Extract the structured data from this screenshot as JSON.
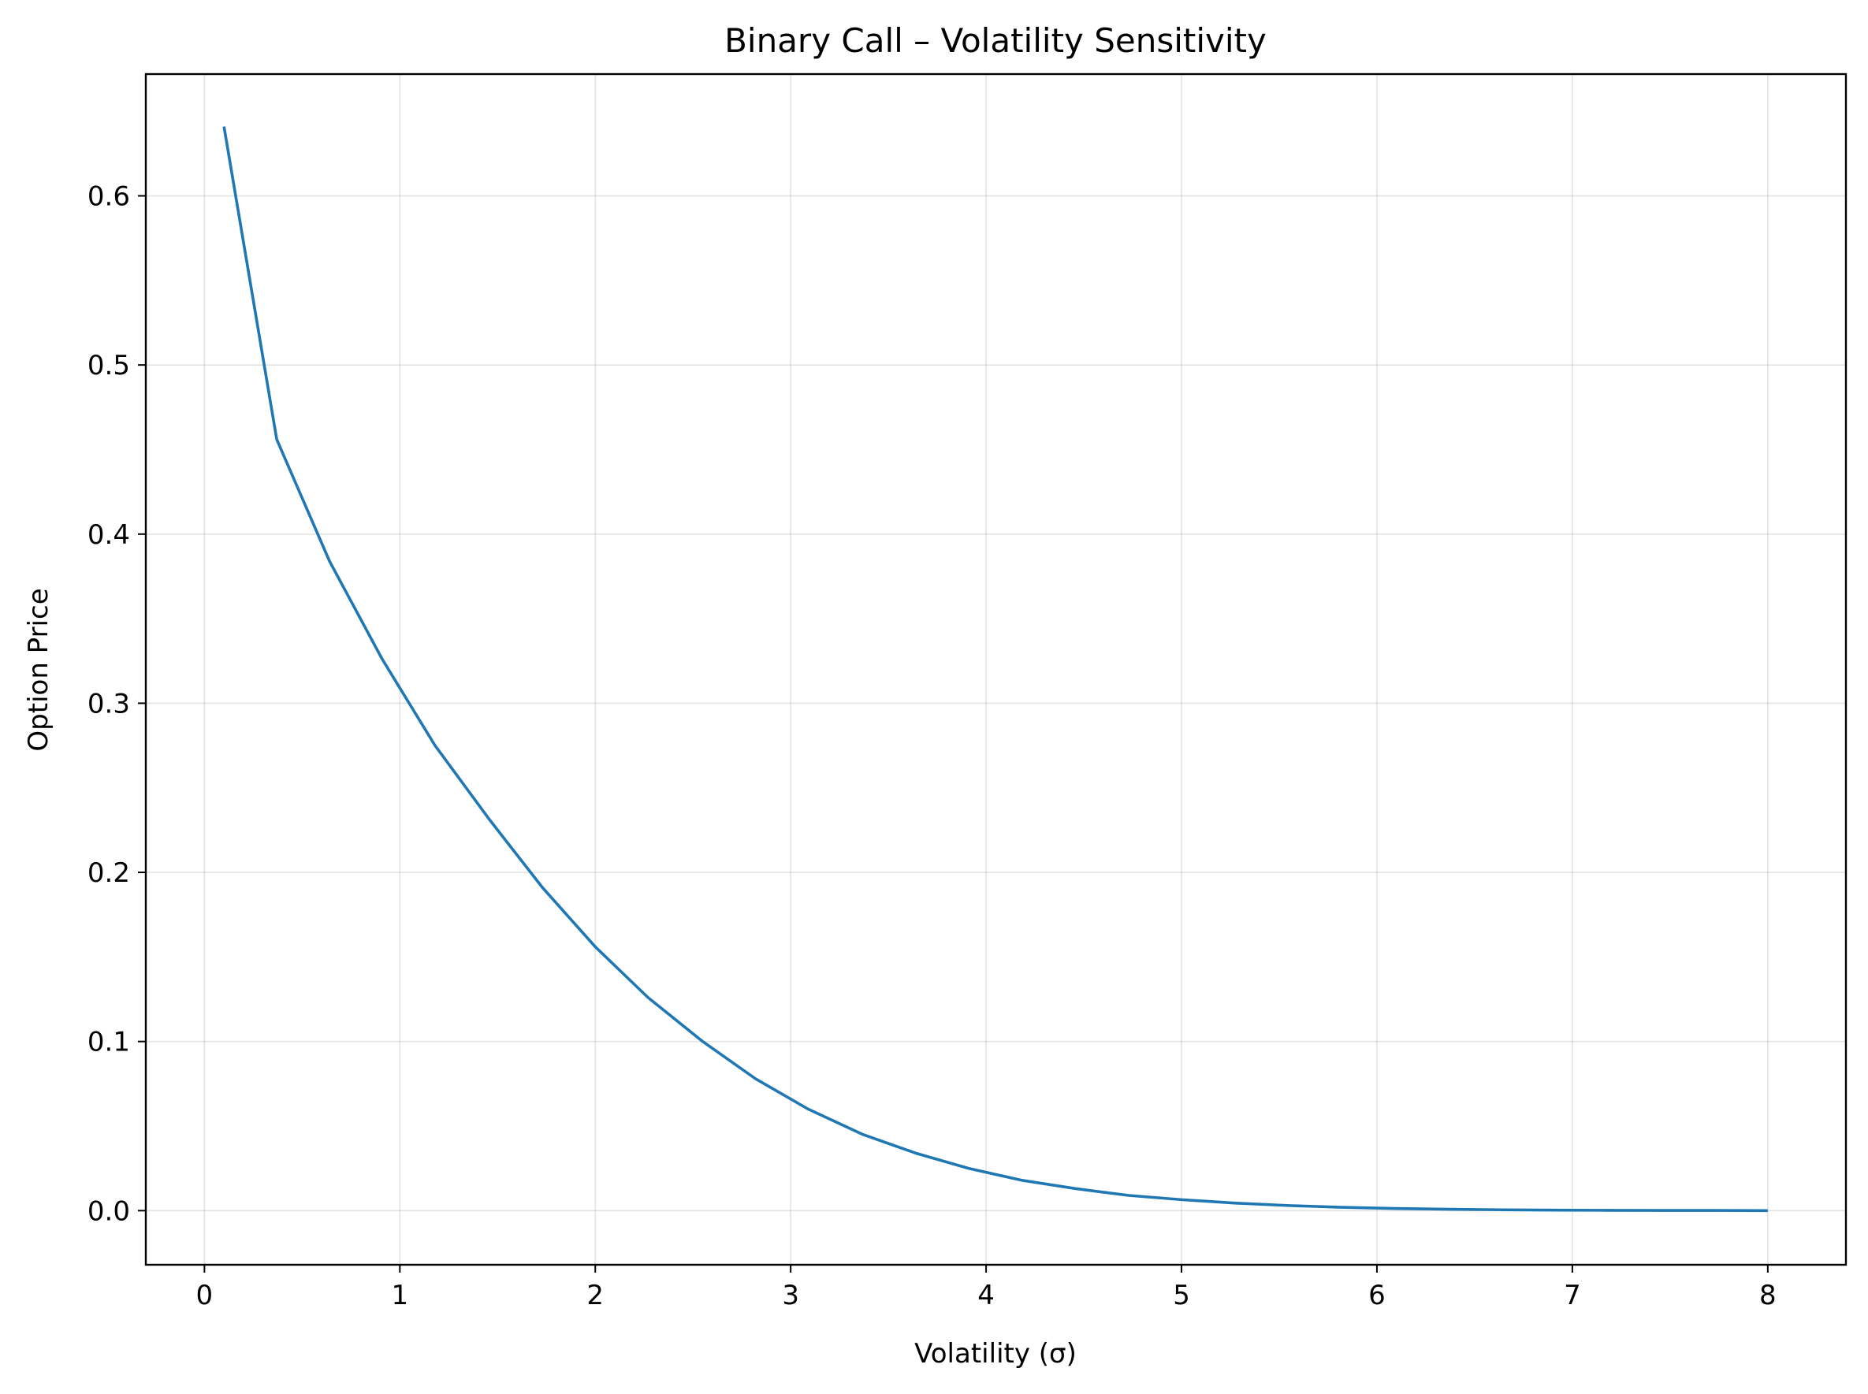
{
  "chart_data": {
    "type": "line",
    "title": "Binary Call – Volatility Sensitivity",
    "xlabel": "Volatility (σ)",
    "ylabel": "Option Price",
    "xlim": [
      -0.3,
      8.4
    ],
    "ylim": [
      -0.032,
      0.672
    ],
    "xticks": [
      0,
      1,
      2,
      3,
      4,
      5,
      6,
      7,
      8
    ],
    "yticks": [
      0.0,
      0.1,
      0.2,
      0.3,
      0.4,
      0.5,
      0.6
    ],
    "xtick_labels": [
      "0",
      "1",
      "2",
      "3",
      "4",
      "5",
      "6",
      "7",
      "8"
    ],
    "ytick_labels": [
      "0.0",
      "0.1",
      "0.2",
      "0.3",
      "0.4",
      "0.5",
      "0.6"
    ],
    "grid": true,
    "colors": {
      "line": "#1f77b4",
      "grid": "#b0b0b0",
      "axes": "#000000"
    },
    "series": [
      {
        "x": [
          0.1,
          0.37,
          0.64,
          0.91,
          1.18,
          1.46,
          1.73,
          2.0,
          2.27,
          2.55,
          2.82,
          3.09,
          3.37,
          3.64,
          3.91,
          4.18,
          4.46,
          4.73,
          5.0,
          5.27,
          5.55,
          5.82,
          6.09,
          6.37,
          6.64,
          6.91,
          7.18,
          7.46,
          7.73,
          8.0
        ],
        "values": [
          0.641,
          0.456,
          0.384,
          0.326,
          0.275,
          0.231,
          0.191,
          0.156,
          0.126,
          0.1,
          0.078,
          0.06,
          0.045,
          0.034,
          0.025,
          0.018,
          0.013,
          0.009,
          0.0065,
          0.0045,
          0.003,
          0.002,
          0.0013,
          0.0008,
          0.0005,
          0.0003,
          0.0002,
          0.0001,
          0.0001,
          0.0
        ]
      }
    ]
  }
}
